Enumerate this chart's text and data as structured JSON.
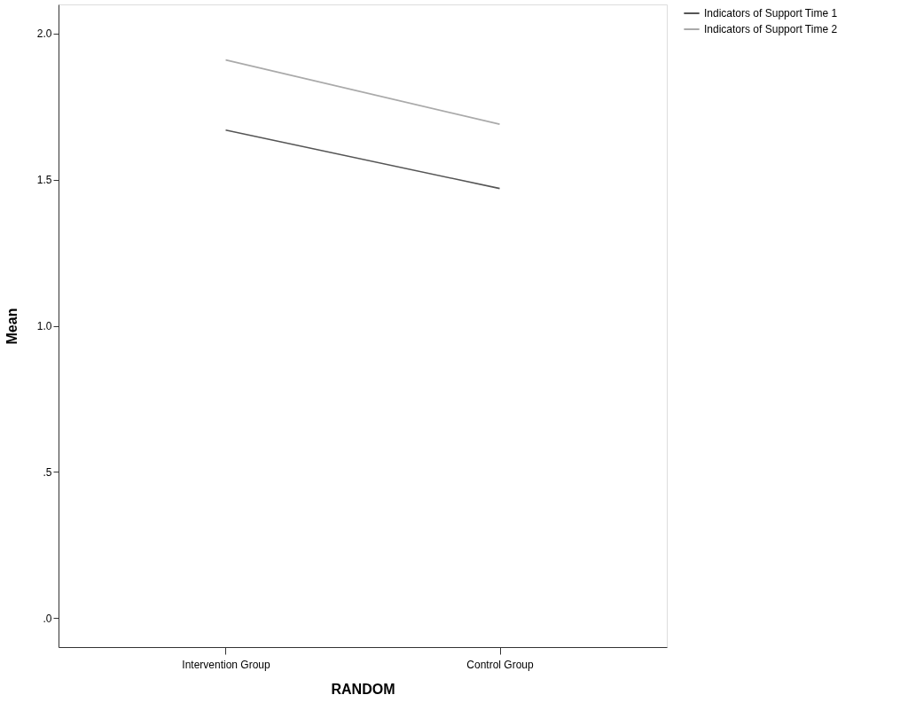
{
  "chart_data": {
    "type": "line",
    "xlabel": "RANDOM",
    "ylabel": "Mean",
    "categories": [
      "Intervention Group",
      "Control Group"
    ],
    "series": [
      {
        "name": "Indicators of Support Time 1",
        "color": "#555555",
        "values": [
          1.67,
          1.47
        ]
      },
      {
        "name": "Indicators of Support Time 2",
        "color": "#aaaaaa",
        "values": [
          1.91,
          1.69
        ]
      }
    ],
    "ylim": [
      -0.1,
      2.1
    ],
    "yticks": [
      {
        "value": 0,
        "label": ".0"
      },
      {
        "value": 0.5,
        "label": ".5"
      },
      {
        "value": 1.0,
        "label": "1.0"
      },
      {
        "value": 1.5,
        "label": "1.5"
      },
      {
        "value": 2.0,
        "label": "2.0"
      }
    ],
    "grid": false,
    "legend": "top right",
    "marker": "none",
    "line_style": "solid"
  }
}
